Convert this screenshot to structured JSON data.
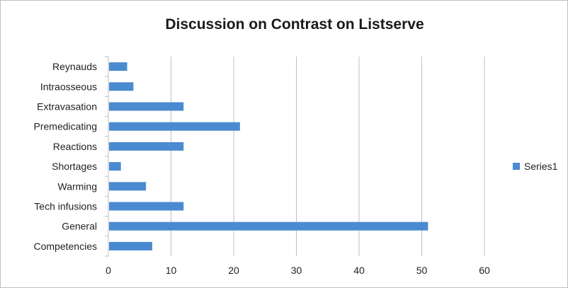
{
  "chart_data": {
    "type": "bar",
    "orientation": "horizontal",
    "title": "Discussion on Contrast on Listserve",
    "xlabel": "",
    "ylabel": "",
    "categories": [
      "Reynauds",
      "Intraosseous",
      "Extravasation",
      "Premedicating",
      "Reactions",
      "Shortages",
      "Warming",
      "Tech infusions",
      "General",
      "Competencies"
    ],
    "series": [
      {
        "name": "Series1",
        "values": [
          3,
          4,
          12,
          21,
          12,
          2,
          6,
          12,
          51,
          7
        ]
      }
    ],
    "xlim": [
      0,
      60
    ],
    "xticks": [
      "0",
      "10",
      "20",
      "30",
      "40",
      "50",
      "60"
    ],
    "grid": true,
    "legend_position": "right",
    "bar_color": "#4a8ad0",
    "grid_color": "#bfbfbf"
  }
}
